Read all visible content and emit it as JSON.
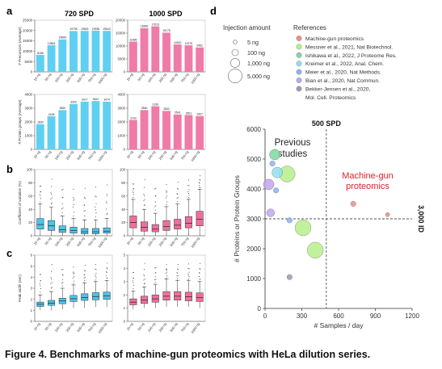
{
  "figure": {
    "caption": "Figure 4. Benchmarks of machine-gun proteomics with HeLa dilution series.",
    "panel_labels": [
      "a",
      "b",
      "c",
      "d"
    ],
    "left_titles": [
      "720 SPD",
      "1000 SPD"
    ],
    "colors": {
      "blue": "#5fd0f2",
      "pink": "#f07aa8",
      "box_blue": "#4fc3ea",
      "box_pink": "#ef6f9c"
    }
  },
  "chart_data": [
    {
      "id": "precursors_720",
      "type": "bar",
      "title": "720 SPD",
      "ylabel": "# Precursors (Average)",
      "categories": [
        "10 ng",
        "50 ng",
        "100 ng",
        "200 ng",
        "500 ng",
        "750 ng",
        "1000 ng"
      ],
      "values": [
        8185,
        12863,
        15669,
        19755,
        19818,
        19938,
        19843
      ],
      "ylim": [
        0,
        25000
      ],
      "yticks": [
        "0",
        "5000",
        "10000",
        "15000",
        "20000",
        "25000"
      ]
    },
    {
      "id": "precursors_1000",
      "type": "bar",
      "title": "1000 SPD",
      "categories": [
        "10 ng",
        "50 ng",
        "100 ng",
        "200 ng",
        "500 ng",
        "750 ng",
        "1000 ng"
      ],
      "values": [
        11695,
        16896,
        17613,
        15175,
        10622,
        10275,
        9452
      ],
      "ylim": [
        0,
        20000
      ],
      "yticks": [
        "0",
        "5000",
        "10000",
        "15000",
        "20000"
      ]
    },
    {
      "id": "proteins_720",
      "type": "bar",
      "ylabel": "# Protein groups (Average)",
      "categories": [
        "10 ng",
        "50 ng",
        "100 ng",
        "200 ng",
        "500 ng",
        "750 ng",
        "1000 ng"
      ],
      "values": [
        1834,
        2408,
        2860,
        3302,
        3477,
        3522,
        3474
      ],
      "ylim": [
        0,
        4000
      ],
      "yticks": [
        "0",
        "1000",
        "2000",
        "3000",
        "4000"
      ]
    },
    {
      "id": "proteins_1000",
      "type": "bar",
      "categories": [
        "10 ng",
        "50 ng",
        "100 ng",
        "200 ng",
        "500 ng",
        "750 ng",
        "1000 ng"
      ],
      "values": [
        2143,
        2860,
        3139,
        2802,
        2541,
        2501,
        2427
      ],
      "ylim": [
        0,
        4000
      ],
      "yticks": [
        "0",
        "1000",
        "2000",
        "3000",
        "4000"
      ]
    },
    {
      "id": "cv_720",
      "type": "box",
      "ylabel": "Coefficient of variation (%)",
      "ylim": [
        0,
        100
      ],
      "yticks": [
        "0",
        "20",
        "40",
        "60",
        "80",
        "100"
      ],
      "categories": [
        "10 ng",
        "50 ng",
        "100 ng",
        "200 ng",
        "500 ng",
        "750 ng",
        "1000 ng"
      ],
      "boxes": [
        {
          "lo": 0,
          "q1": 10,
          "med": 17,
          "q3": 26,
          "hi": 48
        },
        {
          "lo": 0,
          "q1": 8,
          "med": 15,
          "q3": 23,
          "hi": 43
        },
        {
          "lo": 0,
          "q1": 5,
          "med": 9,
          "q3": 15,
          "hi": 30
        },
        {
          "lo": 0,
          "q1": 4,
          "med": 8,
          "q3": 13,
          "hi": 26
        },
        {
          "lo": 0,
          "q1": 3,
          "med": 6,
          "q3": 11,
          "hi": 24
        },
        {
          "lo": 0,
          "q1": 3,
          "med": 6,
          "q3": 11,
          "hi": 24
        },
        {
          "lo": 0,
          "q1": 4,
          "med": 7,
          "q3": 12,
          "hi": 26
        }
      ]
    },
    {
      "id": "cv_1000",
      "type": "box",
      "ylim": [
        0,
        100
      ],
      "yticks": [
        "0",
        "20",
        "40",
        "60",
        "80",
        "100"
      ],
      "categories": [
        "10 ng",
        "50 ng",
        "100 ng",
        "200 ng",
        "500 ng",
        "750 ng",
        "1000 ng"
      ],
      "boxes": [
        {
          "lo": 0,
          "q1": 12,
          "med": 20,
          "q3": 30,
          "hi": 55
        },
        {
          "lo": 0,
          "q1": 7,
          "med": 13,
          "q3": 21,
          "hi": 40
        },
        {
          "lo": 0,
          "q1": 6,
          "med": 10,
          "q3": 17,
          "hi": 34
        },
        {
          "lo": 0,
          "q1": 8,
          "med": 14,
          "q3": 23,
          "hi": 44
        },
        {
          "lo": 0,
          "q1": 10,
          "med": 16,
          "q3": 25,
          "hi": 48
        },
        {
          "lo": 0,
          "q1": 12,
          "med": 19,
          "q3": 29,
          "hi": 55
        },
        {
          "lo": 0,
          "q1": 15,
          "med": 25,
          "q3": 37,
          "hi": 70
        }
      ]
    },
    {
      "id": "peak_720",
      "type": "box",
      "ylabel": "Peak width (sec)",
      "ylim": [
        0,
        6
      ],
      "yticks": [
        "0",
        "1",
        "2",
        "3",
        "4",
        "5",
        "6"
      ],
      "categories": [
        "10 ng",
        "50 ng",
        "100 ng",
        "200 ng",
        "500 ng",
        "750 ng",
        "1000 ng"
      ],
      "boxes": [
        {
          "lo": 1.0,
          "q1": 1.35,
          "med": 1.55,
          "q3": 1.75,
          "hi": 2.4
        },
        {
          "lo": 1.0,
          "q1": 1.45,
          "med": 1.65,
          "q3": 1.9,
          "hi": 2.7
        },
        {
          "lo": 1.1,
          "q1": 1.6,
          "med": 1.85,
          "q3": 2.1,
          "hi": 3.0
        },
        {
          "lo": 1.2,
          "q1": 1.8,
          "med": 2.05,
          "q3": 2.35,
          "hi": 3.3
        },
        {
          "lo": 1.2,
          "q1": 1.9,
          "med": 2.15,
          "q3": 2.5,
          "hi": 3.5
        },
        {
          "lo": 1.3,
          "q1": 1.95,
          "med": 2.25,
          "q3": 2.6,
          "hi": 3.6
        },
        {
          "lo": 1.3,
          "q1": 2.0,
          "med": 2.3,
          "q3": 2.65,
          "hi": 3.7
        }
      ]
    },
    {
      "id": "peak_1000",
      "type": "box",
      "ylim": [
        0,
        5
      ],
      "yticks": [
        "0",
        "1",
        "2",
        "3",
        "4",
        "5"
      ],
      "categories": [
        "10 ng",
        "50 ng",
        "100 ng",
        "200 ng",
        "500 ng",
        "750 ng",
        "1000 ng"
      ],
      "boxes": [
        {
          "lo": 0.9,
          "q1": 1.25,
          "med": 1.45,
          "q3": 1.7,
          "hi": 2.3
        },
        {
          "lo": 1.0,
          "q1": 1.35,
          "med": 1.6,
          "q3": 1.9,
          "hi": 2.6
        },
        {
          "lo": 1.0,
          "q1": 1.45,
          "med": 1.7,
          "q3": 2.0,
          "hi": 2.8
        },
        {
          "lo": 1.1,
          "q1": 1.6,
          "med": 1.9,
          "q3": 2.25,
          "hi": 3.2
        },
        {
          "lo": 1.1,
          "q1": 1.6,
          "med": 1.9,
          "q3": 2.25,
          "hi": 3.1
        },
        {
          "lo": 1.1,
          "q1": 1.55,
          "med": 1.85,
          "q3": 2.2,
          "hi": 3.1
        },
        {
          "lo": 1.0,
          "q1": 1.5,
          "med": 1.8,
          "q3": 2.15,
          "hi": 3.0
        }
      ]
    },
    {
      "id": "benchmark_scatter",
      "type": "scatter",
      "xlabel": "# Samples / day",
      "ylabel": "# Proteins or Protein Groups",
      "xlim": [
        0,
        1200
      ],
      "ylim": [
        0,
        6000
      ],
      "xticks": [
        "0",
        "300",
        "600",
        "900",
        "1200"
      ],
      "yticks": [
        "0",
        "1000",
        "2000",
        "3000",
        "4000",
        "5000",
        "6000"
      ],
      "reference_lines": {
        "vertical_label": "500 SPD",
        "vertical_x": 500,
        "horizontal_label": "3,000 ID",
        "horizontal_y": 3000
      },
      "annotations": {
        "previous": [
          "Previous",
          "studies"
        ],
        "machine_gun": [
          "Machine-gun",
          "proteomics"
        ]
      },
      "size_legend": {
        "title": "Injection amount",
        "labels": [
          "5 ng",
          "100 ng",
          "1,000 ng",
          "5,000 ng"
        ]
      },
      "reference_legend": {
        "title": "References",
        "entries": [
          {
            "text": "Machine-gun proteomics",
            "color": "#f08a8a"
          },
          {
            "text": "Messner et al., 2021, Nat Biotechnol.",
            "color": "#b6ef8a"
          },
          {
            "text": "Ishikawa et al., 2022, J Proteome Res.",
            "color": "#7ed8a0"
          },
          {
            "text": "Kreimer et al., 2022, Anal. Chem.",
            "color": "#8fe0ee"
          },
          {
            "text": "Meier et al., 2020, Nat Methods.",
            "color": "#8ab4f8"
          },
          {
            "text": "Bian et al., 2020, Nat Commun.",
            "color": "#c0a6ee"
          },
          {
            "text": "Bekker-Jensen et al., 2020,",
            "color": "#9a9ab8"
          },
          {
            "text": "Mol. Cell. Proteomics",
            "color": ""
          }
        ]
      },
      "points": [
        {
          "x": 720,
          "y": 3502,
          "ref": 0,
          "size": 1
        },
        {
          "x": 1000,
          "y": 3140,
          "ref": 0,
          "size": 0.8
        },
        {
          "x": 180,
          "y": 4500,
          "ref": 1,
          "size": 3
        },
        {
          "x": 310,
          "y": 2700,
          "ref": 1,
          "size": 3
        },
        {
          "x": 410,
          "y": 1950,
          "ref": 1,
          "size": 3
        },
        {
          "x": 80,
          "y": 5150,
          "ref": 2,
          "size": 2
        },
        {
          "x": 100,
          "y": 4550,
          "ref": 3,
          "size": 2
        },
        {
          "x": 60,
          "y": 4850,
          "ref": 4,
          "size": 1
        },
        {
          "x": 90,
          "y": 3950,
          "ref": 4,
          "size": 1
        },
        {
          "x": 200,
          "y": 2950,
          "ref": 4,
          "size": 1
        },
        {
          "x": 30,
          "y": 4150,
          "ref": 5,
          "size": 2
        },
        {
          "x": 45,
          "y": 3200,
          "ref": 5,
          "size": 1.5
        },
        {
          "x": 200,
          "y": 1050,
          "ref": 6,
          "size": 1
        }
      ]
    }
  ]
}
